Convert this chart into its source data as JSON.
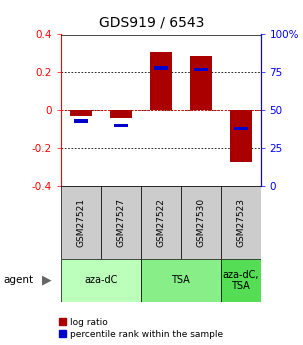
{
  "title": "GDS919 / 6543",
  "samples": [
    "GSM27521",
    "GSM27527",
    "GSM27522",
    "GSM27530",
    "GSM27523"
  ],
  "log_ratios": [
    -0.03,
    -0.04,
    0.31,
    0.285,
    -0.27
  ],
  "percentile_ranks": [
    43,
    40,
    78,
    77,
    38
  ],
  "agents": [
    {
      "label": "aza-dC",
      "span": [
        0,
        2
      ],
      "color": "#bbffbb"
    },
    {
      "label": "TSA",
      "span": [
        2,
        4
      ],
      "color": "#88ee88"
    },
    {
      "label": "aza-dC,\nTSA",
      "span": [
        4,
        5
      ],
      "color": "#55dd55"
    }
  ],
  "ylim": [
    -0.4,
    0.4
  ],
  "yticks_left": [
    -0.4,
    -0.2,
    0.0,
    0.2,
    0.4
  ],
  "yticks_right_vals": [
    0,
    25,
    50,
    75,
    100
  ],
  "bar_color": "#aa0000",
  "pct_color": "#0000cc",
  "bar_width": 0.55,
  "pct_bar_width": 0.35,
  "pct_bar_height": 0.018,
  "background_color": "#ffffff"
}
